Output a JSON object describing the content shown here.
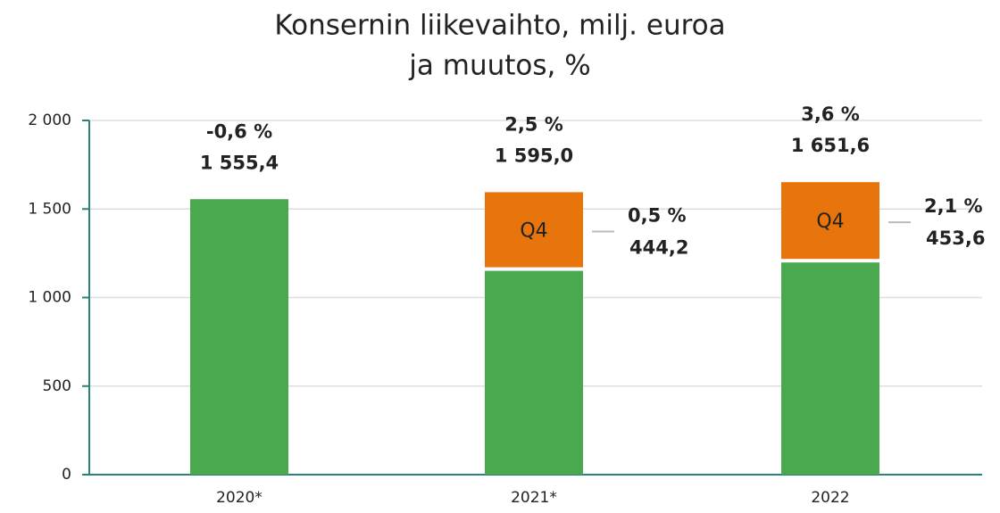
{
  "chart_data": {
    "type": "stacked_bar",
    "title": "Konsernin liikevaihto, milj. euroa",
    "subtitle": "ja muutos, %",
    "categories": [
      "2020*",
      "2021*",
      "2022"
    ],
    "series": [
      {
        "color": "#4aa84f",
        "values": [
          1555.4,
          1150.8,
          1198.0
        ]
      },
      {
        "name": "Q4",
        "color": "#e8740c",
        "values": [
          null,
          444.2,
          453.6
        ],
        "value_labels": [
          null,
          "444,2",
          "453,6"
        ],
        "changes": [
          null,
          0.5,
          2.1
        ],
        "change_labels": [
          null,
          "0,5 %",
          "2,1 %"
        ]
      }
    ],
    "totals": [
      1555.4,
      1595.0,
      1651.6
    ],
    "total_labels": [
      "1 555,4",
      "1 595,0",
      "1 651,6"
    ],
    "changes": [
      -0.6,
      2.5,
      3.6
    ],
    "change_labels": [
      "-0,6 %",
      "2,5 %",
      "3,6 %"
    ],
    "ylim": [
      0,
      2000
    ],
    "yticks": [
      0,
      500,
      {
        "value": 1000,
        "label": "1 000"
      },
      {
        "value": 1500,
        "label": "1 500"
      },
      {
        "value": 2000,
        "label": "2 000"
      }
    ],
    "grid": true
  }
}
